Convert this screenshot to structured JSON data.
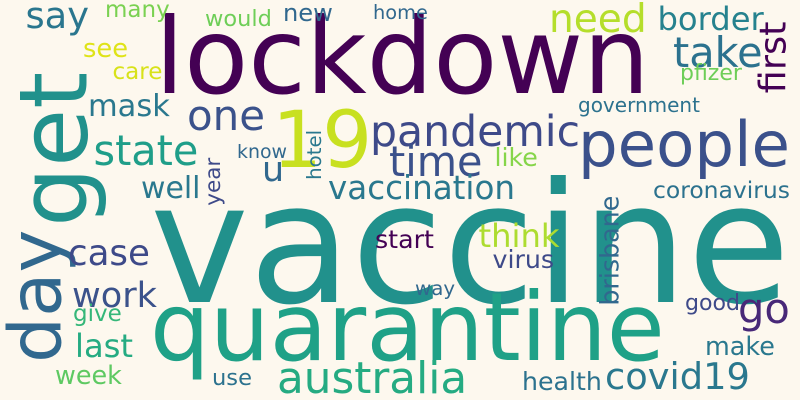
{
  "colors": {
    "background": "#fdf8ee",
    "palette": [
      "#440154",
      "#482878",
      "#3e4a89",
      "#31688e",
      "#26828e",
      "#1f9e89",
      "#35b779",
      "#6ece58",
      "#b5de2b",
      "#fde725"
    ]
  },
  "words": [
    {
      "text": "vaccine",
      "color": "#21918c"
    },
    {
      "text": "lockdown",
      "color": "#440154"
    },
    {
      "text": "quarantine",
      "color": "#1fa187"
    },
    {
      "text": "people",
      "color": "#3b518b"
    },
    {
      "text": "get",
      "color": "#21918c"
    },
    {
      "text": "19",
      "color": "#c8e020"
    },
    {
      "text": "day",
      "color": "#31688e"
    },
    {
      "text": "pandemic",
      "color": "#3e4a89"
    },
    {
      "text": "one",
      "color": "#3b528b"
    },
    {
      "text": "time",
      "color": "#3b518b"
    },
    {
      "text": "australia",
      "color": "#25ab82"
    },
    {
      "text": "state",
      "color": "#1f9e89"
    },
    {
      "text": "covid19",
      "color": "#2a788e"
    },
    {
      "text": "say",
      "color": "#2a768e"
    },
    {
      "text": "need",
      "color": "#b5de2b"
    },
    {
      "text": "take",
      "color": "#2c728e"
    },
    {
      "text": "first",
      "color": "#440154"
    },
    {
      "text": "work",
      "color": "#3b528b"
    },
    {
      "text": "vaccination",
      "color": "#2a788e"
    },
    {
      "text": "go",
      "color": "#482878"
    },
    {
      "text": "case",
      "color": "#3e4a89"
    },
    {
      "text": "border",
      "color": "#26828e"
    },
    {
      "text": "mask",
      "color": "#2a788e"
    },
    {
      "text": "make",
      "color": "#2a788e"
    },
    {
      "text": "u",
      "color": "#31688e"
    },
    {
      "text": "last",
      "color": "#25ab82"
    },
    {
      "text": "well",
      "color": "#2a788e"
    },
    {
      "text": "year",
      "color": "#3e4a89"
    },
    {
      "text": "week",
      "color": "#5ec962"
    },
    {
      "text": "government",
      "color": "#2c728e"
    },
    {
      "text": "think",
      "color": "#addc30"
    },
    {
      "text": "new",
      "color": "#31688e"
    },
    {
      "text": "coronavirus",
      "color": "#2c728e"
    },
    {
      "text": "brisbane",
      "color": "#31688e"
    },
    {
      "text": "many",
      "color": "#7ad151"
    },
    {
      "text": "see",
      "color": "#dfe318"
    },
    {
      "text": "would",
      "color": "#6ece58"
    },
    {
      "text": "hotel",
      "color": "#2a788e"
    },
    {
      "text": "health",
      "color": "#2c728e"
    },
    {
      "text": "start",
      "color": "#440154"
    },
    {
      "text": "good",
      "color": "#3e4a89"
    },
    {
      "text": "virus",
      "color": "#3e4a89"
    },
    {
      "text": "care",
      "color": "#d8e219"
    },
    {
      "text": "pfizer",
      "color": "#6ece58"
    },
    {
      "text": "home",
      "color": "#31688e"
    },
    {
      "text": "like",
      "color": "#86d549"
    },
    {
      "text": "know",
      "color": "#31688e"
    },
    {
      "text": "give",
      "color": "#35b779"
    },
    {
      "text": "way",
      "color": "#31688e"
    },
    {
      "text": "use",
      "color": "#2c728e"
    }
  ]
}
